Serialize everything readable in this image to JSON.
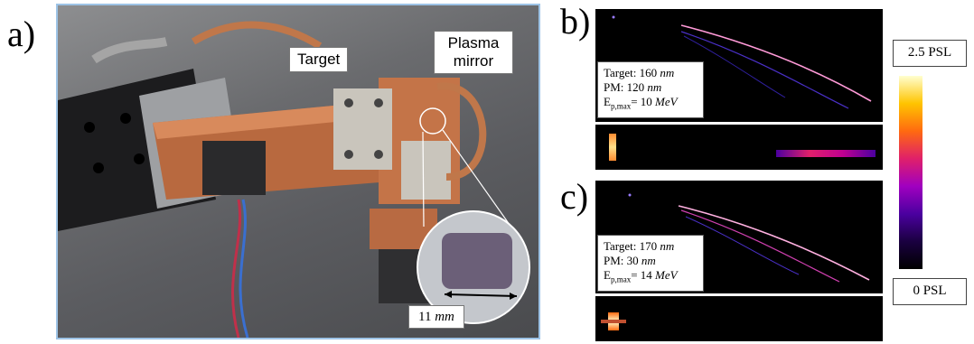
{
  "panels": {
    "a": "a)",
    "b": "b)",
    "c": "c)"
  },
  "photo": {
    "target_label": "Target",
    "plasma_mirror_label": "Plasma mirror",
    "scale_value": "11",
    "scale_unit": "mm"
  },
  "panel_b": {
    "target_prefix": "Target: 160",
    "target_unit": "nm",
    "pm_prefix": "PM: 120",
    "pm_unit": "nm",
    "ep_symbol": "E",
    "ep_sub": "p,max",
    "ep_value": "= 10",
    "ep_unit": "MeV"
  },
  "panel_c": {
    "target_prefix": "Target: 170",
    "target_unit": "nm",
    "pm_prefix": "PM: 30",
    "pm_unit": "nm",
    "ep_symbol": "E",
    "ep_sub": "p,max",
    "ep_value": "= 14",
    "ep_unit": "MeV"
  },
  "colorbar": {
    "max_label": "2.5 PSL",
    "min_label": "0 PSL",
    "colors": [
      "#000000",
      "#1a0040",
      "#4b00a0",
      "#a000c0",
      "#e0206a",
      "#ff6a10",
      "#ffc400",
      "#ffffd0"
    ]
  }
}
